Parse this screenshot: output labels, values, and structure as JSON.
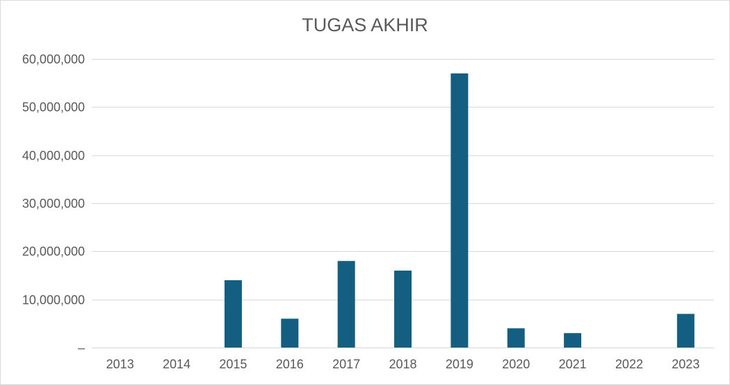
{
  "chart_data": {
    "type": "bar",
    "title": "TUGAS AKHIR",
    "xlabel": "",
    "ylabel": "",
    "categories": [
      "2013",
      "2014",
      "2015",
      "2016",
      "2017",
      "2018",
      "2019",
      "2020",
      "2021",
      "2022",
      "2023"
    ],
    "values": [
      0,
      0,
      14000000,
      6000000,
      18000000,
      16000000,
      57000000,
      4000000,
      3000000,
      0,
      7000000
    ],
    "ylim": [
      0,
      60000000
    ],
    "yticks": [
      0,
      10000000,
      20000000,
      30000000,
      40000000,
      50000000,
      60000000
    ],
    "ytick_labels": [
      "–",
      "10,000,000",
      "20,000,000",
      "30,000,000",
      "40,000,000",
      "50,000,000",
      "60,000,000"
    ],
    "grid": true,
    "legend": "none",
    "bar_color": "#145e82"
  }
}
